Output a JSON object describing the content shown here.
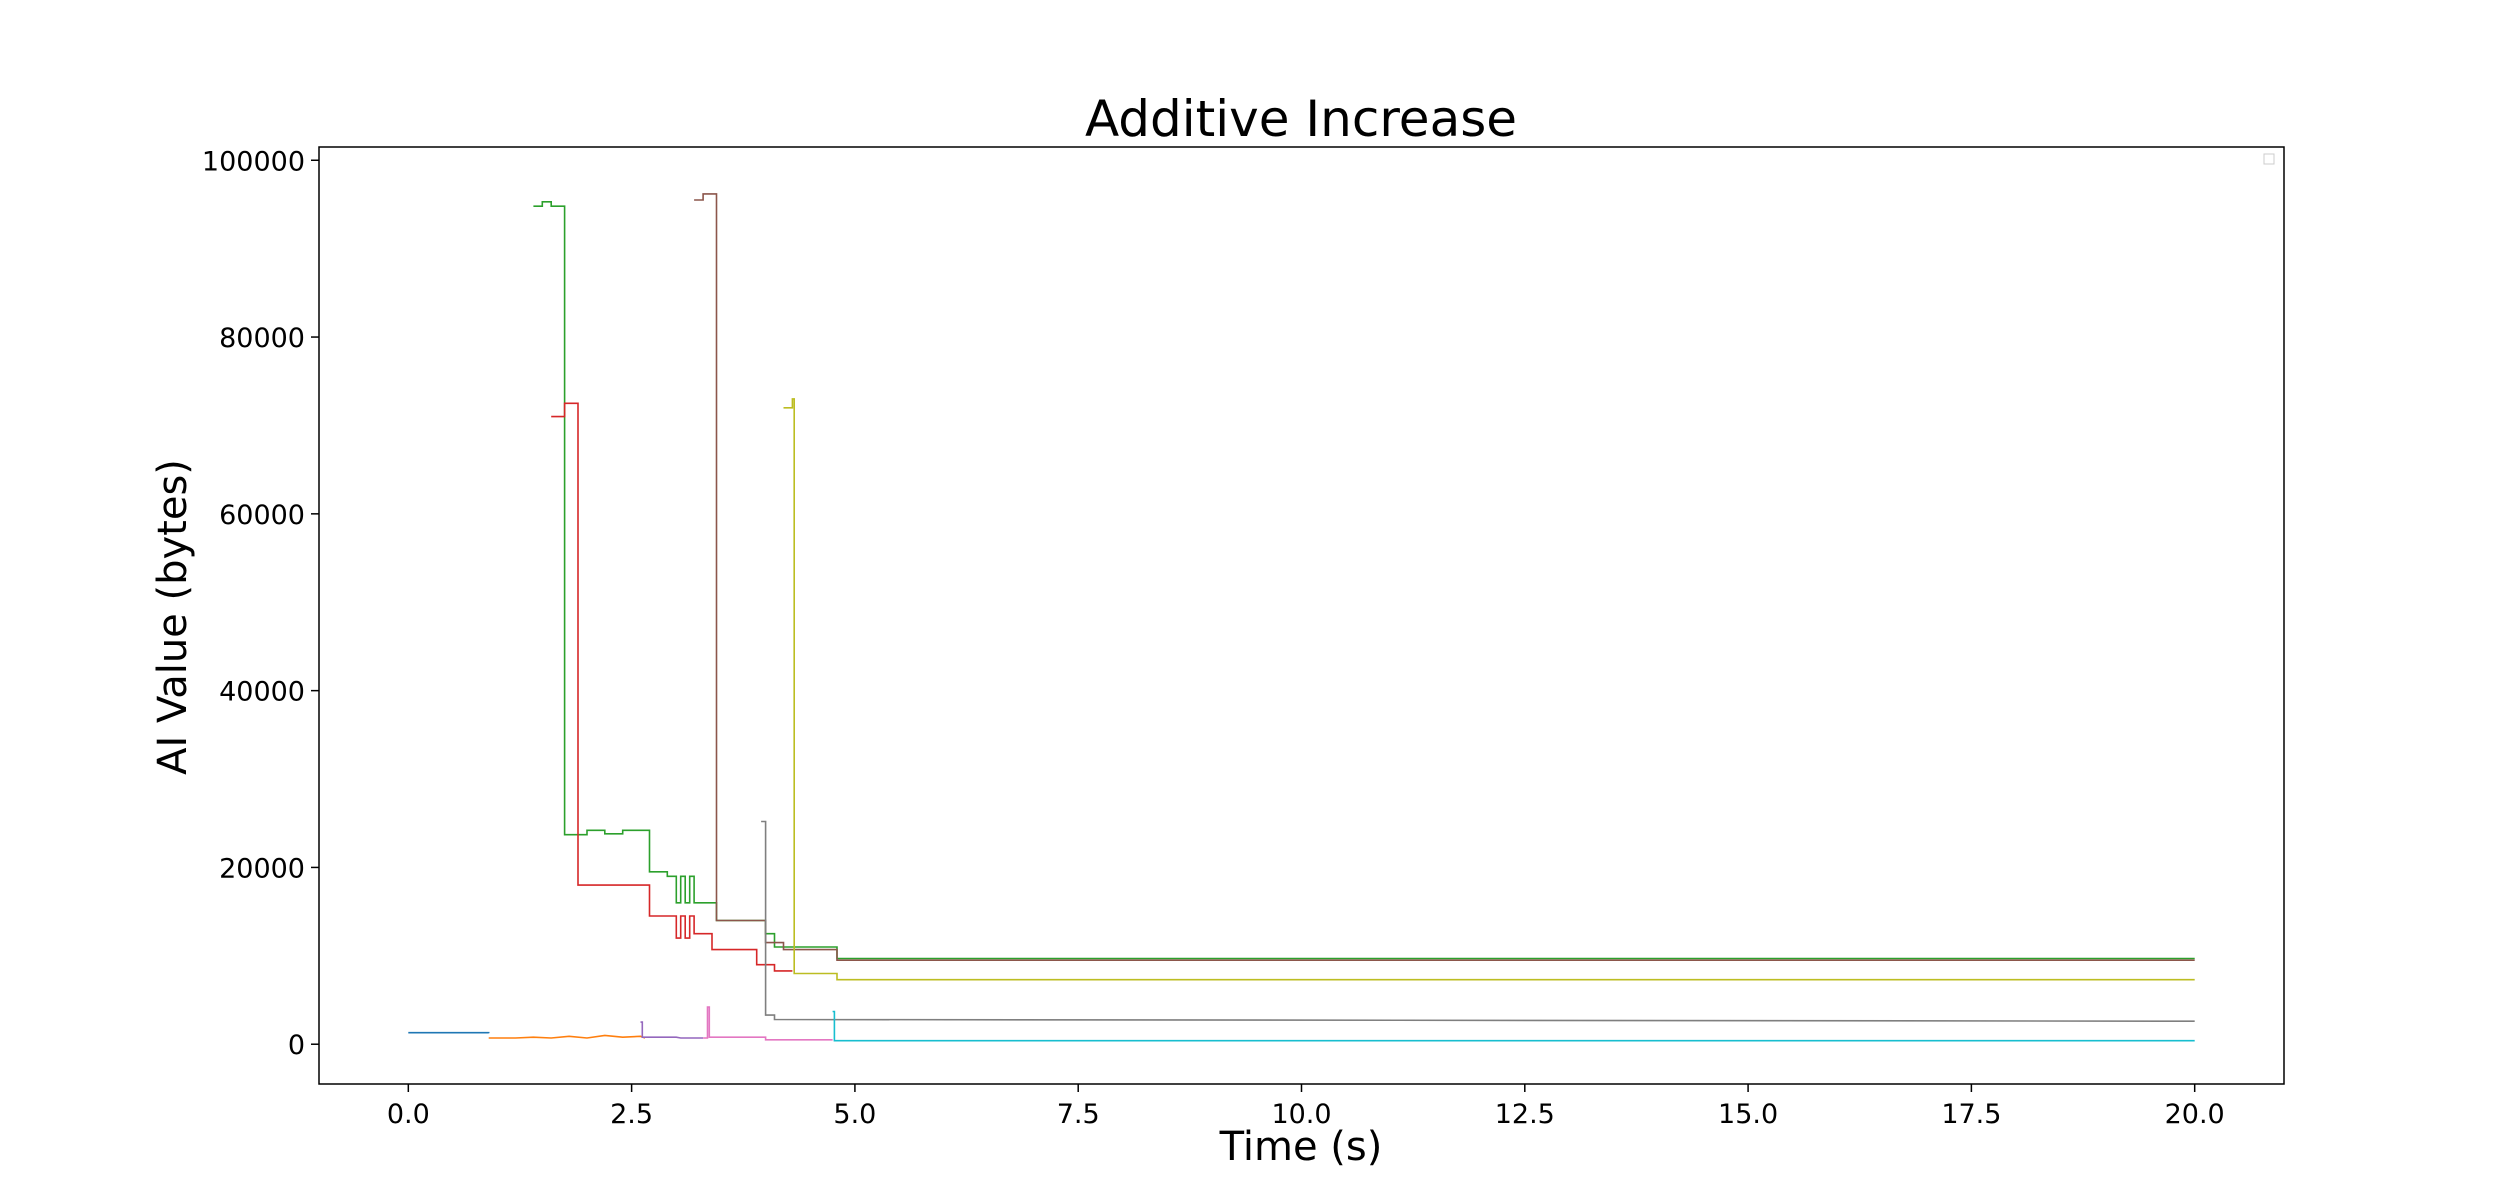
{
  "chart_data": {
    "type": "line",
    "title": "Additive Increase",
    "xlabel": "Time (s)",
    "ylabel": "AI Value (bytes)",
    "xlim": [
      -1.0,
      21.0
    ],
    "ylim": [
      -4500,
      101500
    ],
    "x_ticks": [
      0.0,
      2.5,
      5.0,
      7.5,
      10.0,
      12.5,
      15.0,
      17.5,
      20.0
    ],
    "x_tick_labels": [
      "0.0",
      "2.5",
      "5.0",
      "7.5",
      "10.0",
      "12.5",
      "15.0",
      "17.5",
      "20.0"
    ],
    "y_ticks": [
      0,
      20000,
      40000,
      60000,
      80000,
      100000
    ],
    "y_tick_labels": [
      "0",
      "20000",
      "40000",
      "60000",
      "80000",
      "100000"
    ],
    "grid": false,
    "legend": "top-right (empty)",
    "step": true,
    "series": [
      {
        "color": "#1f77b4",
        "points": [
          [
            0.0,
            1300
          ],
          [
            0.9,
            1300
          ],
          [
            0.9,
            1250
          ]
        ]
      },
      {
        "color": "#ff7f0e",
        "points": [
          [
            0.9,
            700
          ],
          [
            1.2,
            700
          ],
          [
            1.4,
            800
          ],
          [
            1.6,
            700
          ],
          [
            1.8,
            900
          ],
          [
            2.0,
            700
          ],
          [
            2.2,
            1000
          ],
          [
            2.4,
            800
          ],
          [
            2.6,
            900
          ],
          [
            2.65,
            700
          ]
        ]
      },
      {
        "color": "#2ca02c",
        "points": [
          [
            1.4,
            94800
          ],
          [
            1.5,
            94800
          ],
          [
            1.5,
            95300
          ],
          [
            1.6,
            95300
          ],
          [
            1.6,
            94800
          ],
          [
            1.75,
            94800
          ],
          [
            1.75,
            23700
          ],
          [
            2.0,
            23700
          ],
          [
            2.0,
            24200
          ],
          [
            2.2,
            24200
          ],
          [
            2.2,
            23800
          ],
          [
            2.4,
            23800
          ],
          [
            2.4,
            24200
          ],
          [
            2.7,
            24200
          ],
          [
            2.7,
            19500
          ],
          [
            2.9,
            19500
          ],
          [
            2.9,
            19000
          ],
          [
            3.0,
            19000
          ],
          [
            3.0,
            16000
          ],
          [
            3.05,
            16000
          ],
          [
            3.05,
            19000
          ],
          [
            3.1,
            19000
          ],
          [
            3.1,
            16000
          ],
          [
            3.15,
            16000
          ],
          [
            3.15,
            19000
          ],
          [
            3.2,
            19000
          ],
          [
            3.2,
            16000
          ],
          [
            3.45,
            16000
          ],
          [
            3.45,
            14000
          ],
          [
            4.0,
            14000
          ],
          [
            4.0,
            12500
          ],
          [
            4.1,
            12500
          ],
          [
            4.1,
            11000
          ],
          [
            4.8,
            11000
          ],
          [
            4.8,
            9700
          ],
          [
            20.0,
            9700
          ]
        ]
      },
      {
        "color": "#d62728",
        "points": [
          [
            1.6,
            71000
          ],
          [
            1.75,
            71000
          ],
          [
            1.75,
            72500
          ],
          [
            1.9,
            72500
          ],
          [
            1.9,
            18000
          ],
          [
            2.7,
            18000
          ],
          [
            2.7,
            14500
          ],
          [
            3.0,
            14500
          ],
          [
            3.0,
            12000
          ],
          [
            3.05,
            12000
          ],
          [
            3.05,
            14500
          ],
          [
            3.1,
            14500
          ],
          [
            3.1,
            12000
          ],
          [
            3.15,
            12000
          ],
          [
            3.15,
            14500
          ],
          [
            3.2,
            14500
          ],
          [
            3.2,
            12500
          ],
          [
            3.4,
            12500
          ],
          [
            3.4,
            10700
          ],
          [
            3.9,
            10700
          ],
          [
            3.9,
            9000
          ],
          [
            4.1,
            9000
          ],
          [
            4.1,
            8300
          ],
          [
            4.3,
            8300
          ]
        ]
      },
      {
        "color": "#9467bd",
        "points": [
          [
            2.6,
            2500
          ],
          [
            2.62,
            2500
          ],
          [
            2.62,
            800
          ],
          [
            3.0,
            800
          ],
          [
            3.05,
            700
          ],
          [
            3.3,
            700
          ]
        ]
      },
      {
        "color": "#8c564b",
        "points": [
          [
            3.2,
            95500
          ],
          [
            3.3,
            95500
          ],
          [
            3.3,
            96200
          ],
          [
            3.45,
            96200
          ],
          [
            3.45,
            14000
          ],
          [
            4.0,
            14000
          ],
          [
            4.0,
            11500
          ],
          [
            4.2,
            11500
          ],
          [
            4.2,
            10700
          ],
          [
            4.8,
            10700
          ],
          [
            4.8,
            9500
          ],
          [
            20.0,
            9500
          ]
        ]
      },
      {
        "color": "#e377c2",
        "points": [
          [
            3.3,
            700
          ],
          [
            3.35,
            700
          ],
          [
            3.35,
            4200
          ],
          [
            3.37,
            4200
          ],
          [
            3.37,
            800
          ],
          [
            4.0,
            800
          ],
          [
            4.0,
            500
          ],
          [
            4.75,
            500
          ]
        ]
      },
      {
        "color": "#7f7f7f",
        "points": [
          [
            3.95,
            25200
          ],
          [
            4.0,
            25200
          ],
          [
            4.0,
            3300
          ],
          [
            4.1,
            3300
          ],
          [
            4.1,
            2800
          ],
          [
            20.0,
            2600
          ]
        ]
      },
      {
        "color": "#bcbd22",
        "points": [
          [
            4.2,
            72000
          ],
          [
            4.3,
            72000
          ],
          [
            4.3,
            73000
          ],
          [
            4.32,
            73000
          ],
          [
            4.32,
            8000
          ],
          [
            4.8,
            8000
          ],
          [
            4.8,
            7300
          ],
          [
            20.0,
            7300
          ]
        ]
      },
      {
        "color": "#17becf",
        "points": [
          [
            4.75,
            3700
          ],
          [
            4.77,
            3700
          ],
          [
            4.77,
            400
          ],
          [
            20.0,
            400
          ]
        ]
      }
    ]
  }
}
